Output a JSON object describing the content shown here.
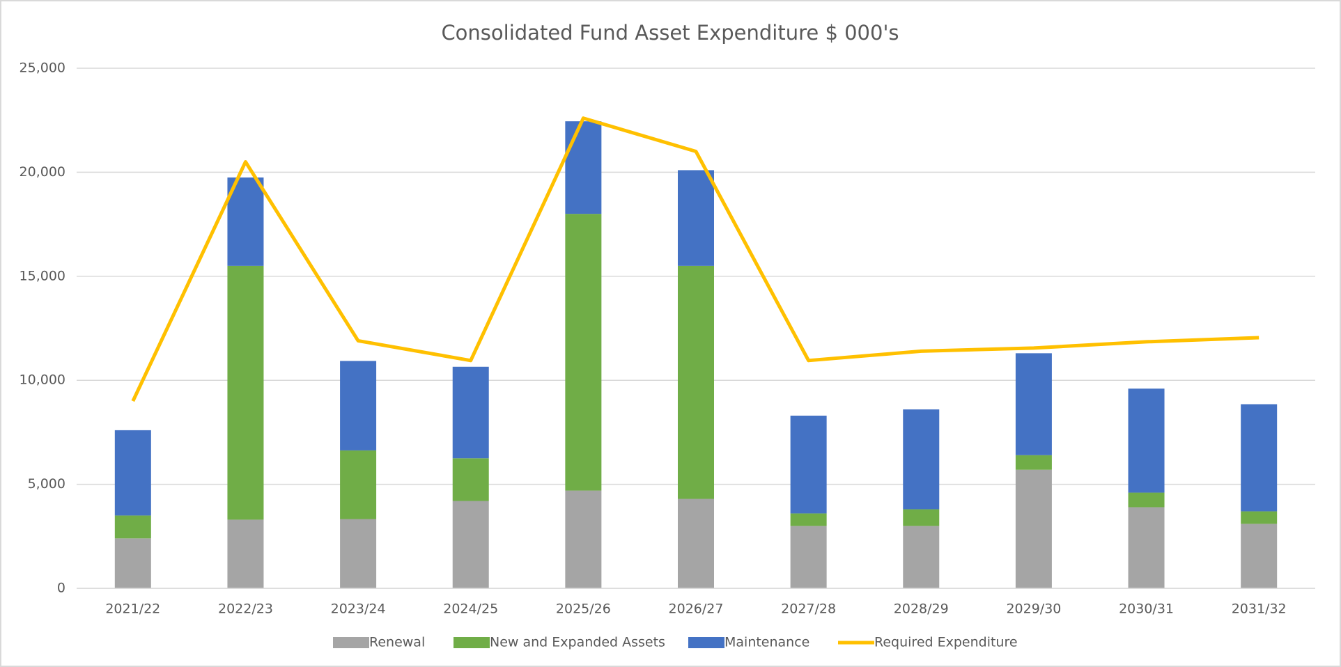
{
  "chart_data": {
    "type": "bar",
    "stacked": true,
    "title": "Consolidated Fund Asset Expenditure $ 000's",
    "categories": [
      "2021/22",
      "2022/23",
      "2023/24",
      "2024/25",
      "2025/26",
      "2026/27",
      "2027/28",
      "2028/29",
      "2029/30",
      "2030/31",
      "2031/32"
    ],
    "series": [
      {
        "name": "Renewal",
        "color": "#a5a5a5",
        "values": [
          2400,
          3300,
          3330,
          4200,
          4700,
          4300,
          3000,
          3000,
          5700,
          3900,
          3100
        ]
      },
      {
        "name": "New and Expanded Assets",
        "color": "#70ad47",
        "values": [
          1100,
          12200,
          3300,
          2050,
          13300,
          11200,
          600,
          800,
          700,
          700,
          600
        ]
      },
      {
        "name": "Maintenance",
        "color": "#4472c4",
        "values": [
          4100,
          4250,
          4300,
          4400,
          4450,
          4600,
          4700,
          4800,
          4900,
          5000,
          5150
        ]
      },
      {
        "name": "Required Expenditure",
        "type": "line",
        "color": "#ffc000",
        "values": [
          9000,
          20500,
          11900,
          10950,
          22600,
          21000,
          10950,
          11400,
          11550,
          11850,
          12050
        ]
      }
    ],
    "ylim": [
      0,
      25000
    ],
    "yticks": [
      0,
      {
        "value": 5000,
        "label": "5,000"
      },
      {
        "value": 10000,
        "label": "10,000"
      },
      {
        "value": 15000,
        "label": "15,000"
      },
      {
        "value": 20000,
        "label": "20,000"
      },
      {
        "value": 25000,
        "label": "25,000"
      }
    ],
    "grid": true,
    "legend": "bottom"
  }
}
